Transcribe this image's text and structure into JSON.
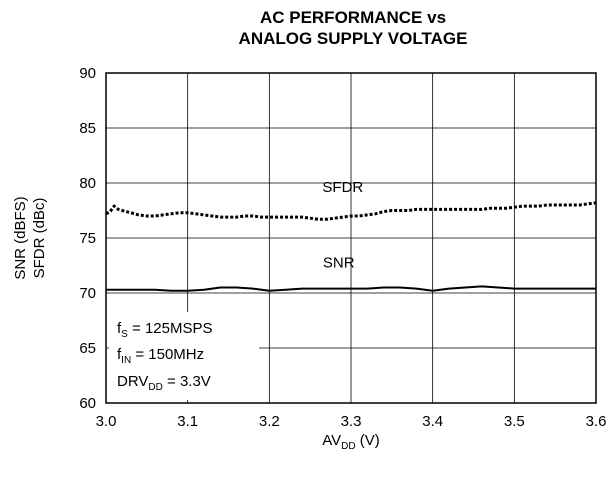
{
  "chart_data": {
    "type": "line",
    "title_line1": "AC PERFORMANCE vs",
    "title_line2": "ANALOG SUPPLY VOLTAGE",
    "xlabel": {
      "main": "AV",
      "sub": "DD",
      "tail": " (V)"
    },
    "ylabel_line1": "SNR (dBFS)",
    "ylabel_line2": "SFDR (dBc)",
    "xlim": [
      3.0,
      3.6
    ],
    "ylim": [
      60,
      90
    ],
    "x_ticks": [
      "3.0",
      "3.1",
      "3.2",
      "3.3",
      "3.4",
      "3.5",
      "3.6"
    ],
    "y_ticks": [
      "90",
      "85",
      "80",
      "75",
      "70",
      "65",
      "60"
    ],
    "grid": true,
    "series": [
      {
        "name": "SFDR",
        "style": "dotted",
        "color": "#000000",
        "x": [
          3.0,
          3.005,
          3.01,
          3.015,
          3.02,
          3.03,
          3.04,
          3.05,
          3.06,
          3.07,
          3.08,
          3.09,
          3.1,
          3.11,
          3.12,
          3.13,
          3.14,
          3.15,
          3.16,
          3.17,
          3.18,
          3.19,
          3.2,
          3.21,
          3.22,
          3.23,
          3.24,
          3.25,
          3.26,
          3.27,
          3.28,
          3.29,
          3.3,
          3.31,
          3.32,
          3.33,
          3.34,
          3.35,
          3.36,
          3.37,
          3.38,
          3.39,
          3.4,
          3.41,
          3.42,
          3.43,
          3.44,
          3.45,
          3.46,
          3.47,
          3.48,
          3.49,
          3.5,
          3.51,
          3.52,
          3.53,
          3.54,
          3.55,
          3.56,
          3.57,
          3.58,
          3.59,
          3.6
        ],
        "y": [
          77.2,
          77.4,
          77.9,
          77.6,
          77.5,
          77.3,
          77.1,
          77.0,
          77.0,
          77.1,
          77.2,
          77.3,
          77.3,
          77.2,
          77.1,
          77.0,
          76.9,
          76.9,
          76.9,
          77.0,
          77.0,
          76.9,
          76.9,
          76.9,
          76.9,
          76.9,
          76.9,
          76.8,
          76.7,
          76.7,
          76.8,
          76.9,
          77.0,
          77.0,
          77.1,
          77.2,
          77.4,
          77.5,
          77.5,
          77.5,
          77.6,
          77.6,
          77.6,
          77.6,
          77.6,
          77.6,
          77.6,
          77.6,
          77.6,
          77.7,
          77.7,
          77.7,
          77.8,
          77.9,
          77.9,
          77.9,
          78.0,
          78.0,
          78.0,
          78.0,
          78.0,
          78.1,
          78.2
        ]
      },
      {
        "name": "SNR",
        "style": "solid",
        "color": "#000000",
        "x": [
          3.0,
          3.02,
          3.04,
          3.06,
          3.08,
          3.1,
          3.12,
          3.14,
          3.16,
          3.18,
          3.2,
          3.22,
          3.24,
          3.26,
          3.28,
          3.3,
          3.32,
          3.34,
          3.36,
          3.38,
          3.4,
          3.42,
          3.44,
          3.46,
          3.48,
          3.5,
          3.52,
          3.54,
          3.56,
          3.58,
          3.6
        ],
        "y": [
          70.3,
          70.3,
          70.3,
          70.3,
          70.2,
          70.2,
          70.3,
          70.5,
          70.5,
          70.4,
          70.2,
          70.3,
          70.4,
          70.4,
          70.4,
          70.4,
          70.4,
          70.5,
          70.5,
          70.4,
          70.2,
          70.4,
          70.5,
          70.6,
          70.5,
          70.4,
          70.4,
          70.4,
          70.4,
          70.4,
          70.4
        ]
      }
    ],
    "curve_labels": [
      {
        "text": "SFDR",
        "x": 3.29,
        "y": 79.2
      },
      {
        "text": "SNR",
        "x": 3.285,
        "y": 72.3
      }
    ],
    "conditions": [
      {
        "main": "f",
        "sub": "S",
        "tail": " = 125MSPS"
      },
      {
        "main": "f",
        "sub": "IN",
        "tail": " = 150MHz"
      },
      {
        "main": "DRV",
        "sub": "DD",
        "tail": " = 3.3V"
      }
    ]
  }
}
